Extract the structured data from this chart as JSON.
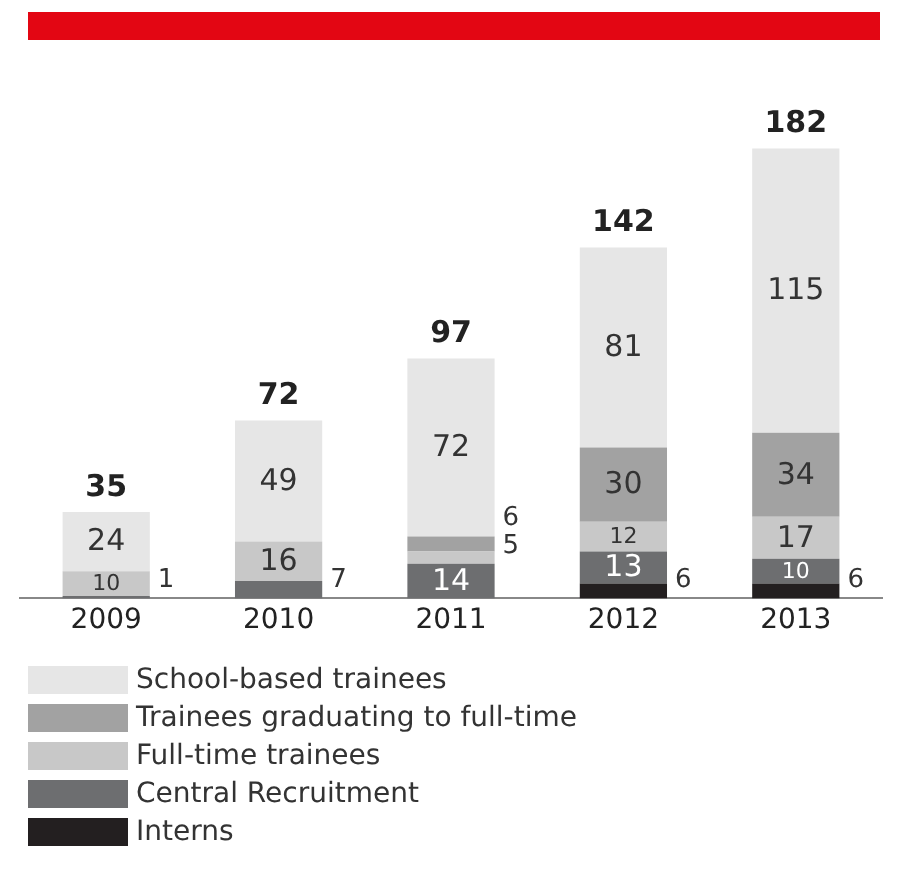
{
  "chart_data": {
    "type": "bar",
    "stacked": true,
    "categories": [
      "2009",
      "2010",
      "2011",
      "2012",
      "2013"
    ],
    "series": [
      {
        "name": "Interns",
        "color": "#231f20",
        "values": [
          null,
          null,
          null,
          6,
          6
        ]
      },
      {
        "name": "Central Recruitment",
        "color": "#6d6e70",
        "values": [
          1,
          7,
          14,
          13,
          10
        ]
      },
      {
        "name": "Full-time trainees",
        "color": "#c8c8c8",
        "values": [
          10,
          16,
          5,
          12,
          17
        ]
      },
      {
        "name": "Trainees graduating to full-time",
        "color": "#a2a2a2",
        "values": [
          null,
          null,
          6,
          30,
          34
        ]
      },
      {
        "name": "School-based trainees",
        "color": "#e6e6e6",
        "values": [
          24,
          49,
          72,
          81,
          115
        ]
      }
    ],
    "data_labels": true,
    "totals": [
      "35",
      "72",
      "97",
      "142",
      "182"
    ],
    "tick_labels": "x",
    "grid": false,
    "legend": "bottom"
  }
}
